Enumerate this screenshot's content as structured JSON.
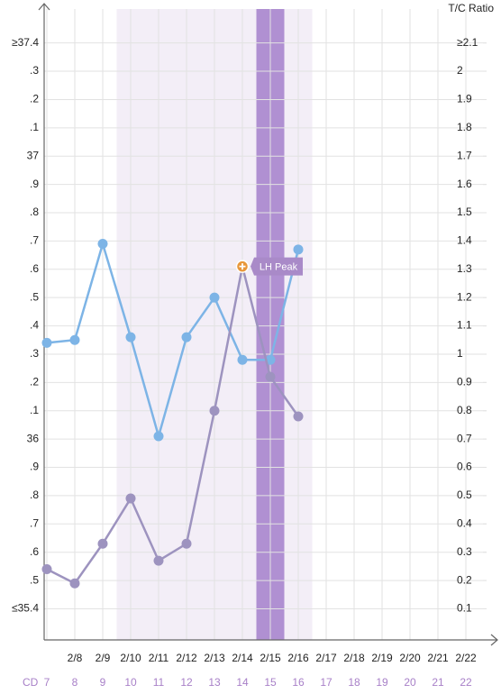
{
  "chart_data": {
    "type": "line",
    "y2_label": "T/C Ratio",
    "categories": [
      null,
      "2/8",
      "2/9",
      "2/10",
      "2/11",
      "2/12",
      "2/13",
      "2/14",
      "2/15",
      "2/16",
      "2/17",
      "2/18",
      "2/19",
      "2/20",
      "2/21",
      "2/22"
    ],
    "cd_label": "CD",
    "cycle_days": [
      7,
      8,
      9,
      10,
      11,
      12,
      13,
      14,
      15,
      16,
      17,
      18,
      19,
      20,
      21,
      22
    ],
    "fertile_window": {
      "start": 10,
      "end": 16,
      "color": "#f3eef7"
    },
    "peak_day": {
      "day": 15,
      "color": "#b090d2"
    },
    "series": [
      {
        "color": "#7db4e6",
        "values": [
          36.34,
          36.35,
          36.69,
          36.36,
          36.01,
          36.36,
          36.5,
          36.28,
          36.28,
          36.67,
          null,
          null,
          null,
          null,
          null,
          null
        ]
      },
      {
        "color": "#9d93bf",
        "axis": "y2",
        "values": [
          0.24,
          0.19,
          0.33,
          0.49,
          0.27,
          0.33,
          0.8,
          1.31,
          0.92,
          0.78,
          null,
          null,
          null,
          null,
          null,
          null
        ]
      }
    ],
    "annotation": {
      "text": "LH Peak",
      "series": 1,
      "index": 7,
      "marker_color": "#e8973a",
      "color": "#a98ac8"
    },
    "ylim": [
      35.29,
      37.52
    ],
    "yticks": [
      {
        "value": 37.4,
        "label": "≥37.4"
      },
      {
        "value": 37.3,
        "label": ".3"
      },
      {
        "value": 37.2,
        "label": ".2"
      },
      {
        "value": 37.1,
        "label": ".1"
      },
      37,
      {
        "value": 36.9,
        "label": ".9"
      },
      {
        "value": 36.8,
        "label": ".8"
      },
      {
        "value": 36.7,
        "label": ".7"
      },
      {
        "value": 36.6,
        "label": ".6"
      },
      {
        "value": 36.5,
        "label": ".5"
      },
      {
        "value": 36.4,
        "label": ".4"
      },
      {
        "value": 36.3,
        "label": ".3"
      },
      {
        "value": 36.2,
        "label": ".2"
      },
      {
        "value": 36.1,
        "label": ".1"
      },
      36,
      {
        "value": 35.9,
        "label": ".9"
      },
      {
        "value": 35.8,
        "label": ".8"
      },
      {
        "value": 35.7,
        "label": ".7"
      },
      {
        "value": 35.6,
        "label": ".6"
      },
      {
        "value": 35.5,
        "label": ".5"
      },
      {
        "value": 35.4,
        "label": "≤35.4"
      }
    ],
    "y2lim": [
      -0.01,
      2.22
    ],
    "y2ticks": [
      {
        "value": 2.1,
        "label": "≥2.1"
      },
      2,
      1.9,
      1.8,
      1.7,
      1.6,
      1.5,
      1.4,
      1.3,
      1.2,
      1.1,
      1,
      0.9,
      0.8,
      0.7,
      0.6,
      0.5,
      0.4,
      0.3,
      0.2,
      0.1
    ],
    "grid": true
  }
}
